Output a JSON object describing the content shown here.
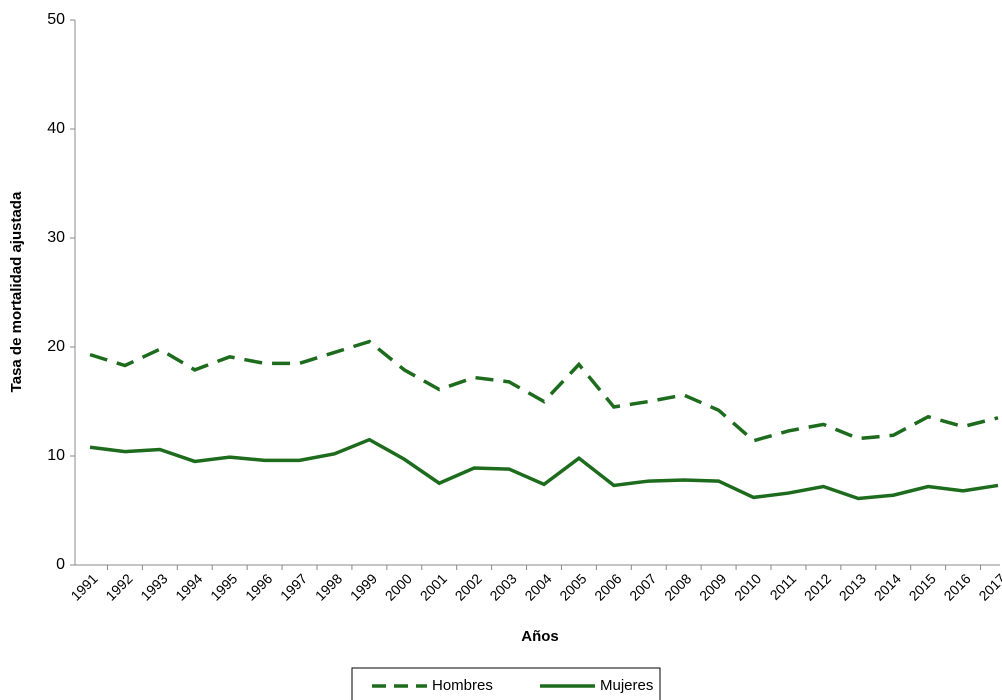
{
  "chart_data": {
    "type": "line",
    "x_label": "Años",
    "y_label": "Tasa de mortalidad ajustada",
    "categories": [
      "1991",
      "1992",
      "1993",
      "1994",
      "1995",
      "1996",
      "1997",
      "1998",
      "1999",
      "2000",
      "2001",
      "2002",
      "2003",
      "2004",
      "2005",
      "2006",
      "2007",
      "2008",
      "2009",
      "2010",
      "2011",
      "2012",
      "2013",
      "2014",
      "2015",
      "2016",
      "2017"
    ],
    "series": [
      {
        "name": "Hombres",
        "color": "#1d6b1d",
        "dash": true,
        "values": [
          19.3,
          18.3,
          19.8,
          17.9,
          19.1,
          18.5,
          18.5,
          19.5,
          20.5,
          17.9,
          16.1,
          17.2,
          16.8,
          15.0,
          18.4,
          14.5,
          15.0,
          15.6,
          14.2,
          11.4,
          12.3,
          12.9,
          11.6,
          11.9,
          13.6,
          12.7,
          13.5
        ]
      },
      {
        "name": "Mujeres",
        "color": "#1d6b1d",
        "dash": false,
        "values": [
          10.8,
          10.4,
          10.6,
          9.5,
          9.9,
          9.6,
          9.6,
          10.2,
          11.5,
          9.7,
          7.5,
          8.9,
          8.8,
          7.4,
          9.8,
          7.3,
          7.7,
          7.8,
          7.7,
          6.2,
          6.6,
          7.2,
          6.1,
          6.4,
          7.2,
          6.8,
          7.3
        ]
      }
    ],
    "ylim": [
      0,
      50
    ],
    "yticks": [
      0,
      10,
      20,
      30,
      40,
      50
    ],
    "legend": "bottom"
  }
}
